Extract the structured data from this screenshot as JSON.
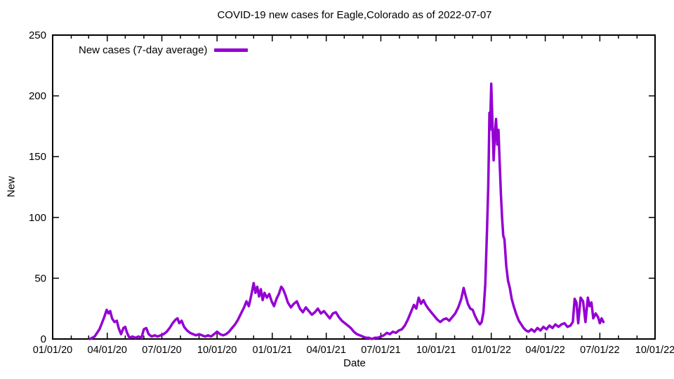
{
  "chart_data": {
    "type": "line",
    "title": "COVID-19 new cases for Eagle,Colorado as of 2022-07-07",
    "xlabel": "Date",
    "ylabel": "New",
    "x_range": [
      "2020-01-01",
      "2022-10-01"
    ],
    "ylim": [
      0,
      250
    ],
    "grid": false,
    "tick_style": "inward-mirrored",
    "x_minor_tick_interval": "month",
    "x_ticks": [
      {
        "date": "2020-01-01",
        "label": "01/01/20"
      },
      {
        "date": "2020-04-01",
        "label": "04/01/20"
      },
      {
        "date": "2020-07-01",
        "label": "07/01/20"
      },
      {
        "date": "2020-10-01",
        "label": "10/01/20"
      },
      {
        "date": "2021-01-01",
        "label": "01/01/21"
      },
      {
        "date": "2021-04-01",
        "label": "04/01/21"
      },
      {
        "date": "2021-07-01",
        "label": "07/01/21"
      },
      {
        "date": "2021-10-01",
        "label": "10/01/21"
      },
      {
        "date": "2022-01-01",
        "label": "01/01/22"
      },
      {
        "date": "2022-04-01",
        "label": "04/01/22"
      },
      {
        "date": "2022-07-01",
        "label": "07/01/22"
      },
      {
        "date": "2022-10-01",
        "label": "10/01/22"
      }
    ],
    "y_ticks": [
      {
        "value": 0,
        "label": "0"
      },
      {
        "value": 50,
        "label": "50"
      },
      {
        "value": 100,
        "label": "100"
      },
      {
        "value": 150,
        "label": "150"
      },
      {
        "value": 200,
        "label": "200"
      },
      {
        "value": 250,
        "label": "250"
      }
    ],
    "legend": {
      "label": "New cases (7-day average)",
      "position": "top-left"
    },
    "colors": {
      "background": "#ffffff",
      "text": "#000000",
      "frame": "#000000",
      "line": "#9400d3"
    },
    "series": [
      {
        "name": "New cases (7-day average)",
        "color": "#9400d3",
        "points_format": [
          "date",
          "value"
        ],
        "points": [
          [
            "2020-03-03",
            0
          ],
          [
            "2020-03-07",
            1
          ],
          [
            "2020-03-11",
            2
          ],
          [
            "2020-03-15",
            5
          ],
          [
            "2020-03-19",
            8
          ],
          [
            "2020-03-23",
            13
          ],
          [
            "2020-03-27",
            18
          ],
          [
            "2020-03-31",
            24
          ],
          [
            "2020-04-03",
            21
          ],
          [
            "2020-04-06",
            23
          ],
          [
            "2020-04-09",
            17
          ],
          [
            "2020-04-13",
            14
          ],
          [
            "2020-04-17",
            15
          ],
          [
            "2020-04-20",
            9
          ],
          [
            "2020-04-24",
            4
          ],
          [
            "2020-04-28",
            9
          ],
          [
            "2020-05-01",
            10
          ],
          [
            "2020-05-04",
            5
          ],
          [
            "2020-05-08",
            1
          ],
          [
            "2020-05-13",
            2
          ],
          [
            "2020-05-18",
            1
          ],
          [
            "2020-05-23",
            2
          ],
          [
            "2020-05-28",
            1
          ],
          [
            "2020-06-01",
            8
          ],
          [
            "2020-06-05",
            9
          ],
          [
            "2020-06-09",
            4
          ],
          [
            "2020-06-14",
            2
          ],
          [
            "2020-06-19",
            3
          ],
          [
            "2020-06-24",
            2
          ],
          [
            "2020-06-29",
            3
          ],
          [
            "2020-07-04",
            4
          ],
          [
            "2020-07-09",
            6
          ],
          [
            "2020-07-14",
            9
          ],
          [
            "2020-07-19",
            13
          ],
          [
            "2020-07-24",
            16
          ],
          [
            "2020-07-27",
            17
          ],
          [
            "2020-07-30",
            13
          ],
          [
            "2020-08-03",
            15
          ],
          [
            "2020-08-07",
            10
          ],
          [
            "2020-08-12",
            7
          ],
          [
            "2020-08-17",
            5
          ],
          [
            "2020-08-22",
            4
          ],
          [
            "2020-08-27",
            3
          ],
          [
            "2020-09-01",
            4
          ],
          [
            "2020-09-06",
            3
          ],
          [
            "2020-09-11",
            2
          ],
          [
            "2020-09-16",
            3
          ],
          [
            "2020-09-21",
            2
          ],
          [
            "2020-09-26",
            4
          ],
          [
            "2020-10-01",
            6
          ],
          [
            "2020-10-06",
            4
          ],
          [
            "2020-10-11",
            3
          ],
          [
            "2020-10-16",
            4
          ],
          [
            "2020-10-21",
            6
          ],
          [
            "2020-10-26",
            9
          ],
          [
            "2020-10-31",
            12
          ],
          [
            "2020-11-05",
            16
          ],
          [
            "2020-11-10",
            21
          ],
          [
            "2020-11-15",
            26
          ],
          [
            "2020-11-19",
            31
          ],
          [
            "2020-11-23",
            27
          ],
          [
            "2020-11-27",
            36
          ],
          [
            "2020-12-01",
            46
          ],
          [
            "2020-12-04",
            38
          ],
          [
            "2020-12-07",
            43
          ],
          [
            "2020-12-10",
            35
          ],
          [
            "2020-12-13",
            41
          ],
          [
            "2020-12-16",
            32
          ],
          [
            "2020-12-19",
            38
          ],
          [
            "2020-12-23",
            34
          ],
          [
            "2020-12-27",
            37
          ],
          [
            "2020-12-31",
            31
          ],
          [
            "2021-01-04",
            27
          ],
          [
            "2021-01-08",
            33
          ],
          [
            "2021-01-12",
            37
          ],
          [
            "2021-01-16",
            43
          ],
          [
            "2021-01-19",
            41
          ],
          [
            "2021-01-23",
            36
          ],
          [
            "2021-01-27",
            30
          ],
          [
            "2021-02-01",
            26
          ],
          [
            "2021-02-06",
            29
          ],
          [
            "2021-02-11",
            31
          ],
          [
            "2021-02-16",
            25
          ],
          [
            "2021-02-21",
            22
          ],
          [
            "2021-02-26",
            26
          ],
          [
            "2021-03-03",
            23
          ],
          [
            "2021-03-08",
            20
          ],
          [
            "2021-03-13",
            22
          ],
          [
            "2021-03-18",
            25
          ],
          [
            "2021-03-23",
            21
          ],
          [
            "2021-03-28",
            23
          ],
          [
            "2021-04-02",
            20
          ],
          [
            "2021-04-07",
            17
          ],
          [
            "2021-04-12",
            21
          ],
          [
            "2021-04-17",
            22
          ],
          [
            "2021-04-22",
            18
          ],
          [
            "2021-04-27",
            15
          ],
          [
            "2021-05-02",
            13
          ],
          [
            "2021-05-07",
            11
          ],
          [
            "2021-05-12",
            9
          ],
          [
            "2021-05-17",
            6
          ],
          [
            "2021-05-22",
            4
          ],
          [
            "2021-05-27",
            3
          ],
          [
            "2021-06-01",
            2
          ],
          [
            "2021-06-06",
            1
          ],
          [
            "2021-06-11",
            1
          ],
          [
            "2021-06-16",
            0
          ],
          [
            "2021-06-21",
            1
          ],
          [
            "2021-06-26",
            1
          ],
          [
            "2021-07-01",
            2
          ],
          [
            "2021-07-06",
            3
          ],
          [
            "2021-07-11",
            5
          ],
          [
            "2021-07-16",
            4
          ],
          [
            "2021-07-21",
            6
          ],
          [
            "2021-07-26",
            5
          ],
          [
            "2021-07-31",
            7
          ],
          [
            "2021-08-05",
            8
          ],
          [
            "2021-08-10",
            11
          ],
          [
            "2021-08-15",
            16
          ],
          [
            "2021-08-20",
            22
          ],
          [
            "2021-08-25",
            28
          ],
          [
            "2021-08-29",
            25
          ],
          [
            "2021-09-02",
            34
          ],
          [
            "2021-09-06",
            29
          ],
          [
            "2021-09-10",
            32
          ],
          [
            "2021-09-14",
            28
          ],
          [
            "2021-09-18",
            25
          ],
          [
            "2021-09-23",
            22
          ],
          [
            "2021-09-28",
            19
          ],
          [
            "2021-10-03",
            16
          ],
          [
            "2021-10-08",
            14
          ],
          [
            "2021-10-13",
            16
          ],
          [
            "2021-10-18",
            17
          ],
          [
            "2021-10-23",
            15
          ],
          [
            "2021-10-28",
            18
          ],
          [
            "2021-11-02",
            21
          ],
          [
            "2021-11-07",
            26
          ],
          [
            "2021-11-12",
            33
          ],
          [
            "2021-11-16",
            42
          ],
          [
            "2021-11-19",
            36
          ],
          [
            "2021-11-23",
            29
          ],
          [
            "2021-11-27",
            25
          ],
          [
            "2021-12-01",
            24
          ],
          [
            "2021-12-05",
            19
          ],
          [
            "2021-12-09",
            15
          ],
          [
            "2021-12-13",
            12
          ],
          [
            "2021-12-16",
            14
          ],
          [
            "2021-12-19",
            22
          ],
          [
            "2021-12-22",
            45
          ],
          [
            "2021-12-25",
            90
          ],
          [
            "2021-12-27",
            125
          ],
          [
            "2021-12-28",
            155
          ],
          [
            "2021-12-29",
            186
          ],
          [
            "2021-12-30",
            172
          ],
          [
            "2022-01-01",
            210
          ],
          [
            "2022-01-03",
            178
          ],
          [
            "2022-01-05",
            147
          ],
          [
            "2022-01-07",
            168
          ],
          [
            "2022-01-09",
            181
          ],
          [
            "2022-01-11",
            160
          ],
          [
            "2022-01-13",
            172
          ],
          [
            "2022-01-15",
            145
          ],
          [
            "2022-01-17",
            120
          ],
          [
            "2022-01-19",
            100
          ],
          [
            "2022-01-21",
            85
          ],
          [
            "2022-01-23",
            82
          ],
          [
            "2022-01-26",
            60
          ],
          [
            "2022-01-29",
            48
          ],
          [
            "2022-02-01",
            42
          ],
          [
            "2022-02-04",
            33
          ],
          [
            "2022-02-08",
            26
          ],
          [
            "2022-02-12",
            20
          ],
          [
            "2022-02-16",
            15
          ],
          [
            "2022-02-20",
            12
          ],
          [
            "2022-02-24",
            9
          ],
          [
            "2022-02-28",
            7
          ],
          [
            "2022-03-04",
            6
          ],
          [
            "2022-03-09",
            8
          ],
          [
            "2022-03-14",
            6
          ],
          [
            "2022-03-19",
            9
          ],
          [
            "2022-03-24",
            7
          ],
          [
            "2022-03-29",
            10
          ],
          [
            "2022-04-03",
            8
          ],
          [
            "2022-04-08",
            11
          ],
          [
            "2022-04-13",
            9
          ],
          [
            "2022-04-18",
            12
          ],
          [
            "2022-04-23",
            10
          ],
          [
            "2022-04-28",
            12
          ],
          [
            "2022-05-03",
            13
          ],
          [
            "2022-05-08",
            10
          ],
          [
            "2022-05-13",
            11
          ],
          [
            "2022-05-17",
            14
          ],
          [
            "2022-05-20",
            33
          ],
          [
            "2022-05-23",
            30
          ],
          [
            "2022-05-26",
            13
          ],
          [
            "2022-05-30",
            34
          ],
          [
            "2022-06-03",
            31
          ],
          [
            "2022-06-07",
            14
          ],
          [
            "2022-06-11",
            34
          ],
          [
            "2022-06-14",
            27
          ],
          [
            "2022-06-17",
            30
          ],
          [
            "2022-06-20",
            17
          ],
          [
            "2022-06-24",
            21
          ],
          [
            "2022-06-28",
            18
          ],
          [
            "2022-07-01",
            13
          ],
          [
            "2022-07-04",
            17
          ],
          [
            "2022-07-07",
            14
          ]
        ]
      }
    ]
  }
}
